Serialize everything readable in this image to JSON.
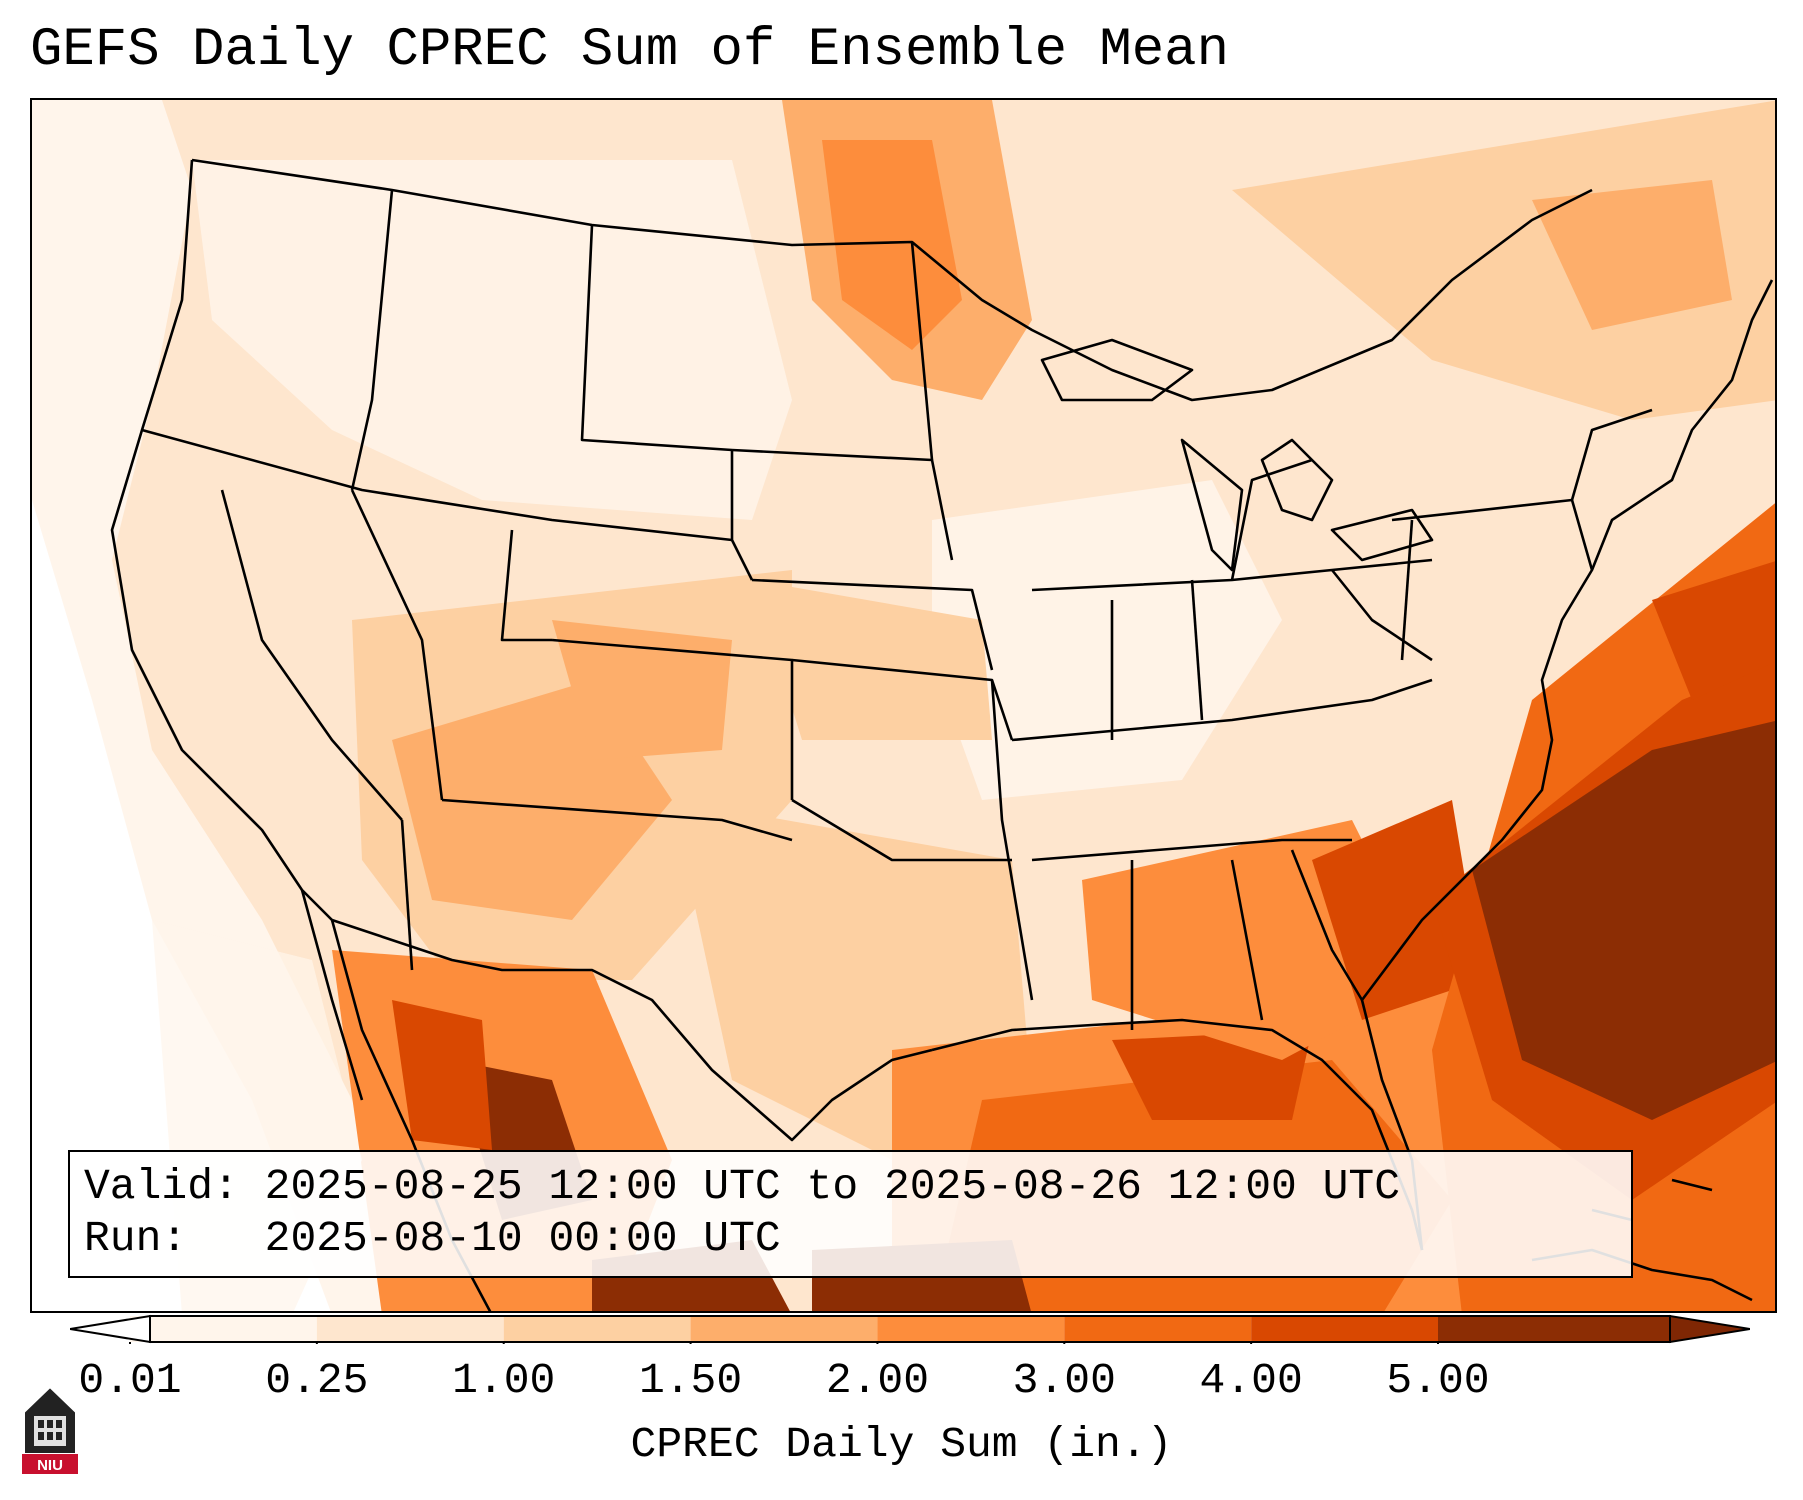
{
  "title": "GEFS Daily CPREC Sum of Ensemble Mean",
  "info": {
    "valid_label": "Valid:",
    "valid_text": "2025-08-25 12:00 UTC to 2025-08-26 12:00 UTC",
    "run_label": "Run:",
    "run_text": "2025-08-10 00:00 UTC"
  },
  "colorbar": {
    "label": "CPREC Daily Sum (in.)",
    "ticks": [
      "0.01",
      "0.25",
      "1.00",
      "1.50",
      "2.00",
      "3.00",
      "4.00",
      "5.00"
    ],
    "colors": [
      "#fff5eb",
      "#fee6ce",
      "#fdd0a2",
      "#fdae6b",
      "#fd8d3c",
      "#f16913",
      "#d94801",
      "#8c2d04"
    ]
  },
  "logo": {
    "text": "NIU"
  }
}
